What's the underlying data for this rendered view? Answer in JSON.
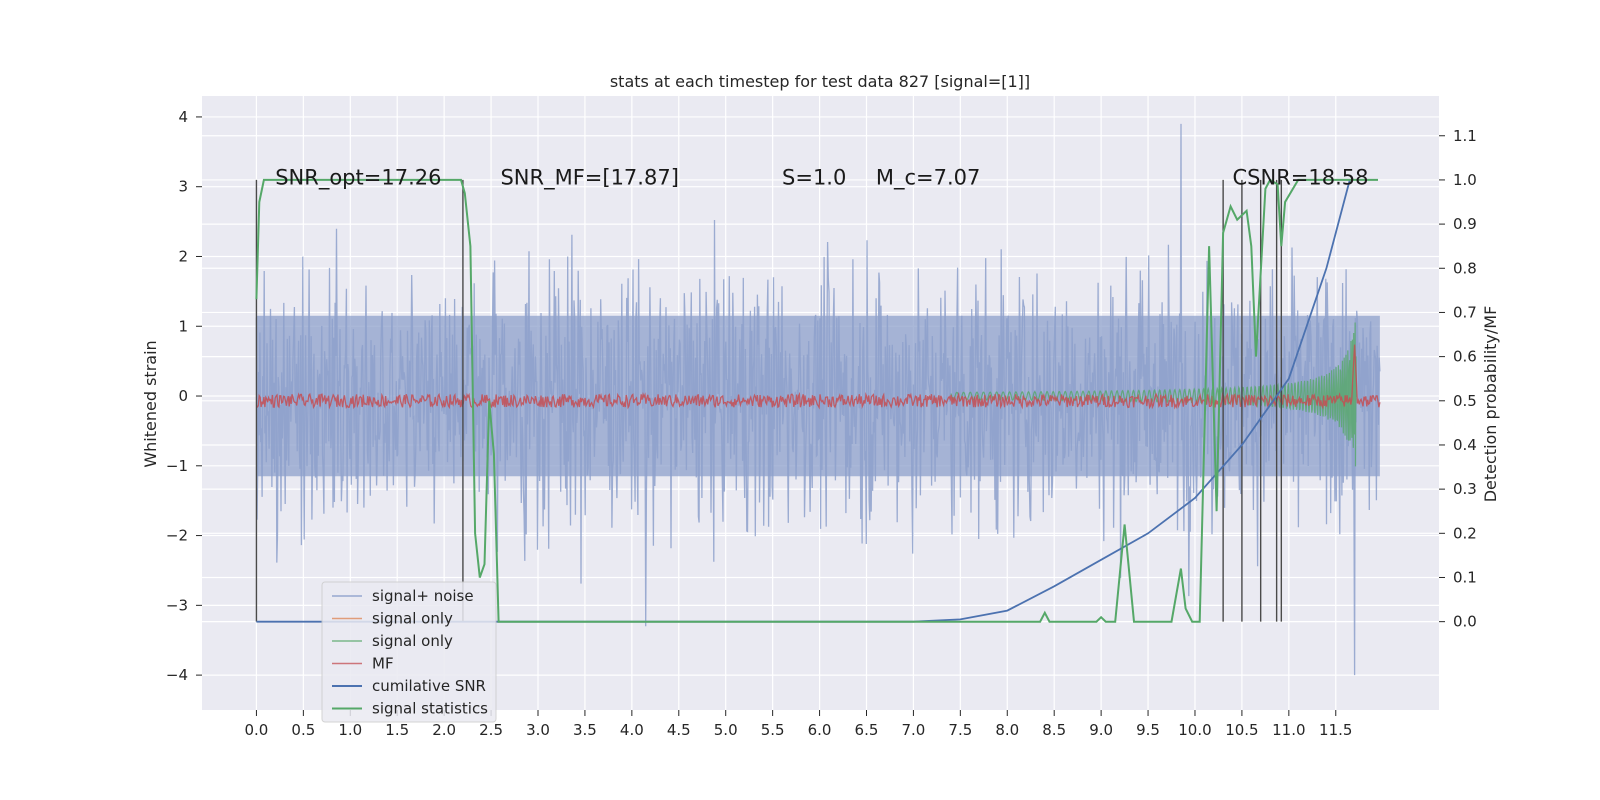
{
  "chart_data": {
    "type": "line",
    "title": "stats at each timestep for test data 827 [signal=[1]]",
    "ylabel": "Whitened strain",
    "ylabel_right": "Detection probability/MF",
    "xlim": [
      -0.58,
      12.6
    ],
    "ylim": [
      -4.5,
      4.3
    ],
    "ylim_right": [
      -0.2,
      1.19
    ],
    "x_ticks": [
      "0.0",
      "0.5",
      "1.0",
      "1.5",
      "2.0",
      "2.5",
      "3.0",
      "3.5",
      "4.0",
      "4.5",
      "5.0",
      "5.5",
      "6.0",
      "6.5",
      "7.0",
      "7.5",
      "8.0",
      "8.5",
      "9.0",
      "9.5",
      "10.0",
      "10.5",
      "11.0",
      "11.5"
    ],
    "y_ticks": [
      "4",
      "3",
      "2",
      "1",
      "0",
      "−1",
      "−2",
      "−3",
      "−4"
    ],
    "y_ticks_right": [
      "1.1",
      "1.0",
      "0.9",
      "0.8",
      "0.7",
      "0.6",
      "0.5",
      "0.4",
      "0.3",
      "0.2",
      "0.1",
      "0.0"
    ],
    "grid": true,
    "legend_position": "lower-left",
    "annotations": [
      {
        "label": "SNR_opt=17.26",
        "x": 0.2,
        "y": 3.0
      },
      {
        "label": "SNR_MF=[17.87]",
        "x": 2.6,
        "y": 3.0
      },
      {
        "label": "S=1.0",
        "x": 5.6,
        "y": 3.0
      },
      {
        "label": "M_c=7.07",
        "x": 6.6,
        "y": 3.0
      },
      {
        "label": "CSNR=18.58",
        "x": 10.4,
        "y": 3.0
      }
    ],
    "detection_lines_x": [
      0.0,
      2.2,
      10.3,
      10.5,
      10.7,
      10.87,
      10.92
    ],
    "series": [
      {
        "name": "signal+ noise",
        "color": "#8da0cb",
        "axis": "left",
        "description": "white noise, amplitude ~1.2 typical, peaks ~3.9 at x≈9.85, ~-4.0 at x≈11.7"
      },
      {
        "name": "signal only",
        "color": "#dd8452",
        "axis": "left"
      },
      {
        "name": "signal only",
        "color": "#55a868",
        "axis": "left",
        "description": "chirp growing from ~0.02 at x=7.5 to ~1.4 at x=11.7"
      },
      {
        "name": "MF",
        "color": "#c44e52",
        "axis": "right",
        "description": "~0.5 flat with spike ~0.63 at x=11.7"
      },
      {
        "name": "cumilative SNR",
        "color": "#4c72b0",
        "axis": "right",
        "points": [
          [
            0,
            0
          ],
          [
            7,
            0
          ],
          [
            7.5,
            0.005
          ],
          [
            8,
            0.025
          ],
          [
            8.5,
            0.08
          ],
          [
            9,
            0.14
          ],
          [
            9.5,
            0.2
          ],
          [
            10,
            0.28
          ],
          [
            10.5,
            0.4
          ],
          [
            11,
            0.55
          ],
          [
            11.4,
            0.8
          ],
          [
            11.65,
            1.0
          ]
        ]
      },
      {
        "name": "signal statistics",
        "color": "#55a868",
        "axis": "right",
        "points": [
          [
            0,
            0.73
          ],
          [
            0.03,
            0.95
          ],
          [
            0.08,
            1.0
          ],
          [
            2.18,
            1.0
          ],
          [
            2.22,
            0.97
          ],
          [
            2.28,
            0.85
          ],
          [
            2.33,
            0.2
          ],
          [
            2.38,
            0.1
          ],
          [
            2.43,
            0.13
          ],
          [
            2.48,
            0.5
          ],
          [
            2.53,
            0.38
          ],
          [
            2.58,
            0.0
          ],
          [
            8.35,
            0.0
          ],
          [
            8.4,
            0.02
          ],
          [
            8.45,
            0.0
          ],
          [
            8.95,
            0.0
          ],
          [
            9.0,
            0.01
          ],
          [
            9.05,
            0.0
          ],
          [
            9.15,
            0.0
          ],
          [
            9.25,
            0.22
          ],
          [
            9.35,
            0.0
          ],
          [
            9.75,
            0.0
          ],
          [
            9.85,
            0.12
          ],
          [
            9.9,
            0.03
          ],
          [
            9.97,
            0.0
          ],
          [
            10.05,
            0.0
          ],
          [
            10.15,
            0.85
          ],
          [
            10.23,
            0.25
          ],
          [
            10.3,
            0.88
          ],
          [
            10.38,
            0.94
          ],
          [
            10.45,
            0.91
          ],
          [
            10.55,
            0.93
          ],
          [
            10.6,
            0.85
          ],
          [
            10.65,
            0.6
          ],
          [
            10.75,
            0.98
          ],
          [
            10.8,
            1.0
          ],
          [
            10.88,
            0.99
          ],
          [
            10.92,
            0.85
          ],
          [
            10.96,
            0.95
          ],
          [
            11.1,
            1.0
          ],
          [
            11.95,
            1.0
          ]
        ]
      }
    ]
  }
}
